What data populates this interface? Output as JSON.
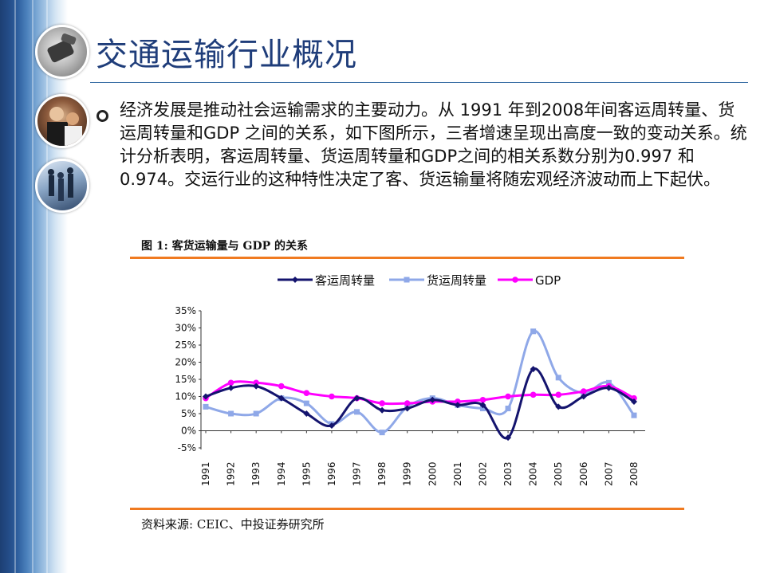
{
  "page": {
    "title": "交通运输行业概况",
    "paragraph": "经济发展是推动社会运输需求的主要动力。从 1991 年到2008年间客运周转量、货运周转量和GDP 之间的关系，如下图所示，三者增速呈现出高度一致的变动关系。统计分析表明，客运周转量、货运周转量和GDP之间的相关系数分别为0.997 和0.974。交运行业的这种特性决定了客、货运输量将随宏观经济波动而上下起伏。",
    "figure_title": "图 1: 客货运输量与 GDP 的关系",
    "source": "资料来源: CEIC、中投证券研究所"
  },
  "colors": {
    "title": "#1f3d7a",
    "accent_orange": "#f07a20",
    "passenger": "#14146e",
    "freight": "#8fa8e8",
    "gdp": "#ff00ff"
  },
  "icons": [
    "phone-photo-icon",
    "people-photo-icon",
    "commuters-photo-icon",
    "bullet-icon"
  ],
  "chart_data": {
    "type": "line",
    "categories": [
      "1991",
      "1992",
      "1993",
      "1994",
      "1995",
      "1996",
      "1997",
      "1998",
      "1999",
      "2000",
      "2001",
      "2002",
      "2003",
      "2004",
      "2005",
      "2006",
      "2007",
      "2008"
    ],
    "ylim": [
      -5,
      35
    ],
    "yticks": [
      "35%",
      "30%",
      "25%",
      "20%",
      "15%",
      "10%",
      "5%",
      "0%",
      "-5%"
    ],
    "ytick_values": [
      35,
      30,
      25,
      20,
      15,
      10,
      5,
      0,
      -5
    ],
    "legend_position": "top",
    "series": [
      {
        "name": "客运周转量",
        "marker": "diamond",
        "values": [
          10,
          12.5,
          13,
          9.5,
          5,
          1.5,
          9.5,
          6,
          6.5,
          9,
          7.5,
          7.5,
          -2,
          18,
          7,
          10,
          12.5,
          8.5
        ]
      },
      {
        "name": "货运周转量",
        "marker": "square",
        "values": [
          7,
          5,
          5,
          9.5,
          8,
          2,
          5.5,
          -0.5,
          7,
          9.5,
          7.5,
          6.5,
          6.5,
          29,
          15.5,
          11,
          14,
          4.5
        ]
      },
      {
        "name": "GDP",
        "marker": "circle",
        "values": [
          9.5,
          14,
          14,
          13,
          11,
          10,
          9.5,
          8,
          8,
          8.5,
          8.5,
          9,
          10,
          10.5,
          10.5,
          11.5,
          13,
          9.5
        ]
      }
    ]
  }
}
